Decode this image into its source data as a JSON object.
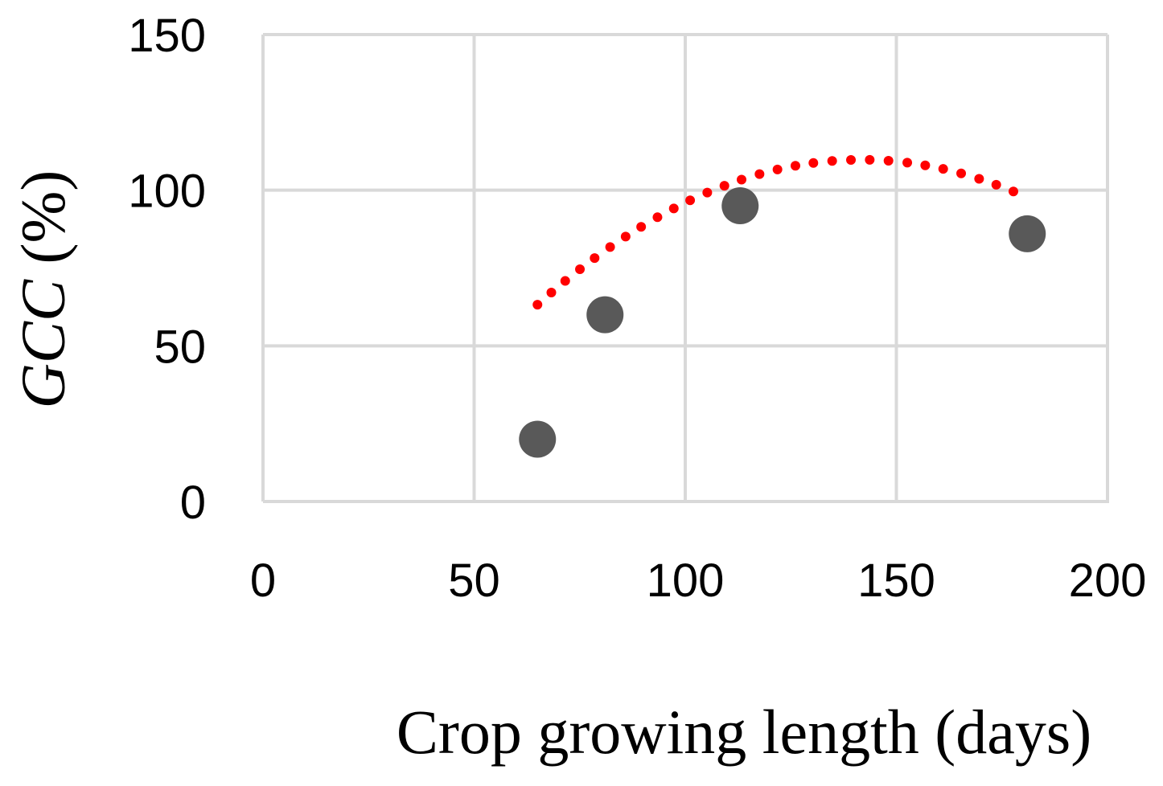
{
  "chart_data": {
    "type": "scatter",
    "title": "",
    "xlabel": "Crop growing length (days)",
    "ylabel": {
      "symbol": "GCC",
      "unit": " (%)"
    },
    "xlim": [
      0,
      200
    ],
    "ylim": [
      0,
      150
    ],
    "x_ticks": [
      0,
      50,
      100,
      150,
      200
    ],
    "y_ticks": [
      0,
      50,
      100,
      150
    ],
    "grid": true,
    "legend": "none",
    "series": [
      {
        "kind": "points",
        "color": "#595959",
        "points": [
          {
            "x": 65,
            "y": 20
          },
          {
            "x": 81,
            "y": 60
          },
          {
            "x": 113,
            "y": 95
          },
          {
            "x": 181,
            "y": 86
          }
        ]
      },
      {
        "kind": "trendline",
        "style": "dotted",
        "color": "#ff0000",
        "fit": "polynomial-2",
        "x_range": [
          65,
          181
        ],
        "coefficients": [
          -0.0079,
          2.24,
          -49
        ]
      }
    ]
  }
}
